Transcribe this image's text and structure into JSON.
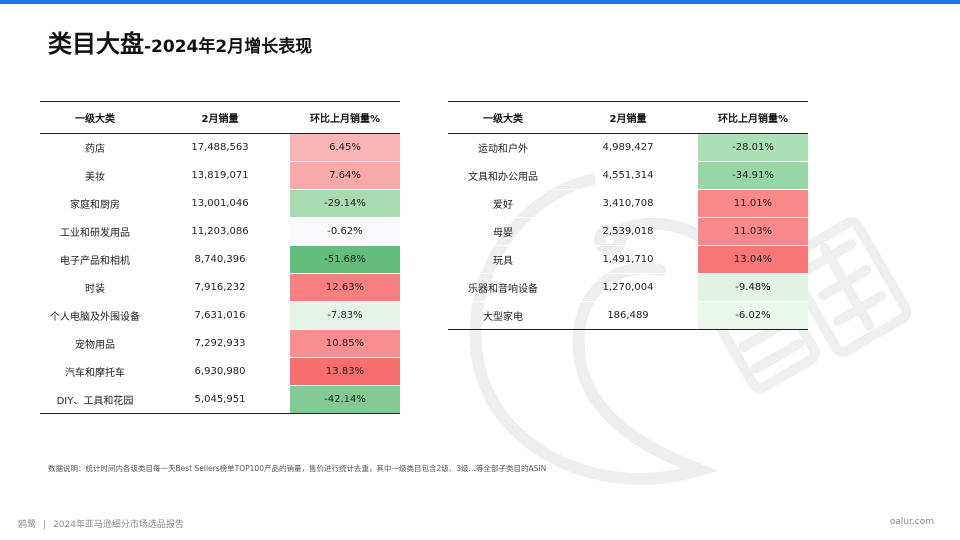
{
  "title": {
    "main": "类目大盘",
    "sub": "-2024年2月增长表现"
  },
  "table_left": {
    "headers": [
      "一级大类",
      "2月销量",
      "环比上月销量%"
    ],
    "rows": [
      {
        "category": "药店",
        "sales": "17,488,563",
        "change": "6.45%",
        "color": "#f9b5b5"
      },
      {
        "category": "美妆",
        "sales": "13,819,071",
        "change": "7.64%",
        "color": "#f8aaaa"
      },
      {
        "category": "家庭和厨房",
        "sales": "13,001,046",
        "change": "-29.14%",
        "color": "#a8dbb2"
      },
      {
        "category": "工业和研发用品",
        "sales": "11,203,086",
        "change": "-0.62%",
        "color": "#fbfafc"
      },
      {
        "category": "电子产品和相机",
        "sales": "8,740,396",
        "change": "-51.68%",
        "color": "#63be7b"
      },
      {
        "category": "时装",
        "sales": "7,916,232",
        "change": "12.63%",
        "color": "#f88080"
      },
      {
        "category": "个人电脑及外围设备",
        "sales": "7,631,016",
        "change": "-7.83%",
        "color": "#e6f3e9"
      },
      {
        "category": "宠物用品",
        "sales": "7,292,933",
        "change": "10.85%",
        "color": "#f98e8e"
      },
      {
        "category": "汽车和摩托车",
        "sales": "6,930,980",
        "change": "13.83%",
        "color": "#f76e6e"
      },
      {
        "category": "DIY、工具和花园",
        "sales": "5,045,951",
        "change": "-42.14%",
        "color": "#82cb94"
      }
    ]
  },
  "table_right": {
    "headers": [
      "一级大类",
      "2月销量",
      "环比上月销量%"
    ],
    "rows": [
      {
        "category": "运动和户外",
        "sales": "4,989,427",
        "change": "-28.01%",
        "color": "#ace0b6"
      },
      {
        "category": "文具和办公用品",
        "sales": "4,551,314",
        "change": "-34.91%",
        "color": "#98d6a6"
      },
      {
        "category": "爱好",
        "sales": "3,410,708",
        "change": "11.01%",
        "color": "#f98888"
      },
      {
        "category": "母婴",
        "sales": "2,539,018",
        "change": "11.03%",
        "color": "#f98888"
      },
      {
        "category": "玩具",
        "sales": "1,491,710",
        "change": "13.04%",
        "color": "#f87676"
      },
      {
        "category": "乐器和音响设备",
        "sales": "1,270,004",
        "change": "-9.48%",
        "color": "#e2f2e5"
      },
      {
        "category": "大型家电",
        "sales": "186,489",
        "change": "-6.02%",
        "color": "#eaf5ec"
      }
    ]
  },
  "note": "数据说明：统计时间内各级类目每一天Best Sellers榜单TOP100产品的销量，售价进行统计去重，其中一级类目包含2级、3级…等全部子类目的ASIN",
  "footer": {
    "brand": "鸥鹭",
    "report": "2024年亚马逊细分市场选品报告",
    "site": "oalur.com"
  },
  "colors": {
    "accent": "#1a73e8"
  }
}
